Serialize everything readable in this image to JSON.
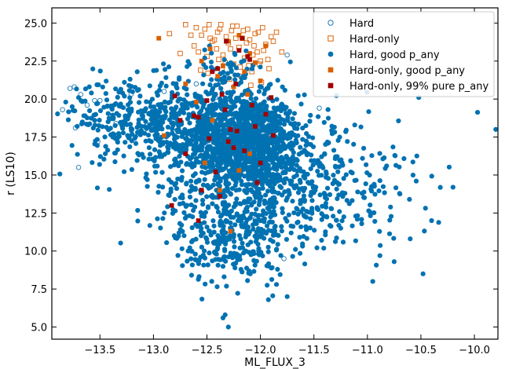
{
  "chart_data": {
    "type": "scatter",
    "title": "",
    "xlabel": "ML_FLUX_3",
    "ylabel": "r (LS10)",
    "xlim": [
      -13.95,
      -9.78
    ],
    "ylim": [
      4.2,
      26.0
    ],
    "xticks": [
      -13.5,
      -13.0,
      -12.5,
      -12.0,
      -11.5,
      -11.0,
      -10.5,
      -10.0
    ],
    "xtick_labels": [
      "−13.5",
      "−13.0",
      "−12.5",
      "−12.0",
      "−11.5",
      "−11.0",
      "−10.5",
      "−10.0"
    ],
    "yticks": [
      5.0,
      7.5,
      10.0,
      12.5,
      15.0,
      17.5,
      20.0,
      22.5,
      25.0
    ],
    "ytick_labels": [
      "5.0",
      "7.5",
      "10.0",
      "12.5",
      "15.0",
      "17.5",
      "20.0",
      "22.5",
      "25.0"
    ],
    "grid": false,
    "legend_position": "top-right",
    "series": [
      {
        "name": "Hard",
        "marker": "circle-open",
        "color": "#1f77b4",
        "x": [
          -13.85,
          -13.78,
          -13.74,
          -13.73,
          -13.7,
          -13.68,
          -13.55,
          -13.52,
          -13.5,
          -13.62,
          -12.9,
          -12.6,
          -11.75,
          -11.45,
          -11.78,
          -12.05,
          -12.42,
          -13.35,
          -13.21
        ],
        "y": [
          19.3,
          20.7,
          20.8,
          18.1,
          15.5,
          20.3,
          19.9,
          17.2,
          19.9,
          19.6,
          20.5,
          21.0,
          22.9,
          19.4,
          9.5,
          12.1,
          20.1,
          18.4,
          20.3
        ]
      },
      {
        "name": "Hard-only",
        "marker": "square-open",
        "color": "#d95f02",
        "x": [
          -12.65,
          -12.58,
          -12.52,
          -12.48,
          -12.45,
          -12.4,
          -12.37,
          -12.35,
          -12.32,
          -12.3,
          -12.27,
          -12.25,
          -12.22,
          -12.2,
          -12.17,
          -12.15,
          -12.12,
          -12.1,
          -12.08,
          -12.05,
          -12.03,
          -12.0,
          -11.98,
          -11.95,
          -11.92,
          -11.9,
          -12.62,
          -12.55,
          -12.5,
          -12.43,
          -12.38,
          -12.33,
          -12.28,
          -12.23,
          -12.18,
          -12.13,
          -12.07,
          -12.02,
          -11.97,
          -11.93,
          -12.6,
          -12.47,
          -12.41,
          -12.36,
          -12.26,
          -12.16,
          -12.11,
          -12.06,
          -11.99,
          -11.85,
          -12.85,
          -12.7,
          -12.75,
          -11.88,
          -12.19,
          -12.29,
          -12.39,
          -12.49,
          -12.09,
          -12.01,
          -11.8,
          -12.56
        ],
        "y": [
          24.2,
          23.1,
          24.6,
          24.9,
          23.8,
          24.4,
          24.9,
          22.9,
          24.1,
          23.7,
          24.5,
          22.3,
          24.8,
          23.4,
          24.0,
          22.7,
          24.6,
          23.9,
          21.8,
          24.3,
          23.1,
          22.5,
          24.7,
          23.6,
          22.0,
          24.1,
          23.5,
          24.2,
          22.8,
          23.9,
          24.6,
          22.4,
          23.3,
          24.0,
          21.5,
          23.7,
          22.9,
          24.4,
          23.2,
          22.6,
          24.7,
          24.0,
          23.3,
          21.9,
          24.8,
          24.5,
          22.2,
          23.5,
          21.1,
          24.4,
          24.3,
          24.9,
          23.0,
          23.8,
          22.1,
          21.3,
          22.6,
          21.7,
          20.9,
          22.3,
          23.1,
          21.9
        ]
      },
      {
        "name": "Hard, good p_any",
        "marker": "circle-filled",
        "color": "#0072b2",
        "clusters": [
          {
            "cx": -12.15,
            "cy": 17.3,
            "sx": 0.26,
            "sy": 1.5,
            "n": 1150
          },
          {
            "cx": -12.75,
            "cy": 18.2,
            "sx": 0.38,
            "sy": 1.7,
            "n": 420
          },
          {
            "cx": -13.2,
            "cy": 19.0,
            "sx": 0.32,
            "sy": 1.2,
            "n": 160
          },
          {
            "cx": -12.25,
            "cy": 10.5,
            "sx": 0.25,
            "sy": 1.4,
            "n": 230
          },
          {
            "cx": -12.1,
            "cy": 13.3,
            "sx": 0.45,
            "sy": 1.6,
            "n": 330
          },
          {
            "cx": -11.6,
            "cy": 15.2,
            "sx": 0.45,
            "sy": 1.8,
            "n": 230
          },
          {
            "cx": -11.1,
            "cy": 13.0,
            "sx": 0.35,
            "sy": 1.6,
            "n": 70
          },
          {
            "cx": -12.3,
            "cy": 21.6,
            "sx": 0.22,
            "sy": 0.9,
            "n": 60
          }
        ],
        "x": [
          -13.82,
          -13.76,
          -13.7,
          -13.64,
          -13.58,
          -9.8,
          -10.2,
          -10.48,
          -10.52,
          -10.6,
          -10.95,
          -11.05,
          -12.35,
          -12.3,
          -12.33,
          -11.75,
          -11.85,
          -12.55,
          -13.55,
          -13.6,
          -13.45,
          -12.65,
          -10.4,
          -10.75
        ],
        "y": [
          19.8,
          19.5,
          20.1,
          18.9,
          20.4,
          18.0,
          14.2,
          8.5,
          20.1,
          10.8,
          8.0,
          13.8,
          5.6,
          5.0,
          5.8,
          7.0,
          7.8,
          12.3,
          18.6,
          20.8,
          16.4,
          14.6,
          12.0,
          9.3
        ]
      },
      {
        "name": "Hard-only, good p_any",
        "marker": "square-filled",
        "color": "#d95f02",
        "x": [
          -12.95,
          -12.55,
          -12.47,
          -12.4,
          -12.35,
          -12.3,
          -12.25,
          -12.2,
          -12.15,
          -12.1,
          -12.05,
          -12.0,
          -11.95,
          -12.6,
          -12.9,
          -12.45,
          -12.3,
          -12.1,
          -12.2,
          -12.38,
          -12.52,
          -12.12,
          -12.7,
          -12.28
        ],
        "y": [
          24.0,
          22.5,
          23.3,
          21.5,
          22.2,
          23.8,
          20.8,
          24.2,
          21.8,
          23.0,
          22.4,
          21.2,
          23.5,
          19.8,
          17.6,
          18.6,
          17.2,
          16.4,
          15.3,
          14.0,
          15.8,
          20.3,
          21.0,
          11.3
        ]
      },
      {
        "name": "Hard-only, 99% pure p_any",
        "marker": "square-filled",
        "color": "#a00000",
        "x": [
          -12.8,
          -12.75,
          -12.83,
          -12.58,
          -12.55,
          -12.48,
          -12.45,
          -12.4,
          -12.36,
          -12.33,
          -12.3,
          -12.25,
          -12.2,
          -12.17,
          -12.1,
          -12.08,
          -12.05,
          -12.0,
          -11.95,
          -11.9,
          -12.42,
          -12.38,
          -12.28,
          -12.23,
          -12.15,
          -12.12,
          -12.5,
          -12.62,
          -12.7,
          -11.88,
          -12.03,
          -12.32,
          -12.22,
          -12.58
        ],
        "y": [
          20.2,
          18.6,
          13.0,
          12.0,
          14.0,
          17.4,
          21.8,
          22.0,
          20.3,
          19.3,
          17.2,
          16.8,
          23.2,
          24.0,
          22.6,
          19.6,
          18.2,
          15.8,
          19.0,
          20.1,
          15.2,
          13.6,
          18.0,
          21.0,
          16.6,
          22.8,
          19.9,
          18.9,
          16.4,
          17.6,
          14.5,
          23.8,
          17.9,
          18.8
        ]
      }
    ]
  }
}
